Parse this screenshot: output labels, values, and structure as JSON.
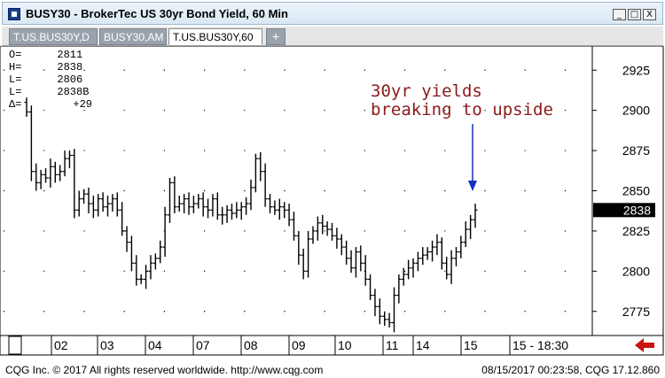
{
  "window": {
    "title": "BUSY30 - BrokerTec US 30yr Bond Yield, 60 Min",
    "buttons": [
      "_",
      "□",
      "X"
    ]
  },
  "tabs": [
    {
      "label": "T.US.BUS30Y,D",
      "active": false
    },
    {
      "label": "BUSY30,AM",
      "active": false
    },
    {
      "label": "T.US.BUS30Y,60",
      "active": true
    },
    {
      "label": "+",
      "active": false
    }
  ],
  "ohlc": [
    {
      "key": "O=",
      "value": "2811"
    },
    {
      "key": "H=",
      "value": "2838"
    },
    {
      "key": "L=",
      "value": "2806"
    },
    {
      "key": "L=",
      "value": "2838B"
    },
    {
      "key": "Δ=",
      "value": "+29"
    }
  ],
  "annotation": {
    "line1": "30yr yields",
    "line2": "breaking to upside"
  },
  "colors": {
    "bars": "#000000",
    "annotation": "#8b1a1a",
    "arrow": "#1030c0",
    "last_price_bg": "#000000",
    "nav_arrow": "#cc1111"
  },
  "chart_data": {
    "type": "ohlc",
    "ylim": [
      2760,
      2940
    ],
    "y_ticks": [
      2775,
      2800,
      2825,
      2850,
      2875,
      2900,
      2925
    ],
    "last_price": 2838,
    "last_price_label": "2838",
    "x_labels": [
      "02",
      "03",
      "04",
      "07",
      "08",
      "09",
      "10",
      "11",
      "14",
      "15",
      "15 - 18:30"
    ],
    "grid": "dotted",
    "closes": [
      2899,
      2862,
      2855,
      2860,
      2858,
      2865,
      2860,
      2862,
      2870,
      2872,
      2838,
      2845,
      2848,
      2842,
      2838,
      2845,
      2840,
      2842,
      2845,
      2838,
      2825,
      2818,
      2805,
      2795,
      2795,
      2800,
      2805,
      2808,
      2815,
      2835,
      2855,
      2840,
      2842,
      2845,
      2840,
      2842,
      2845,
      2840,
      2838,
      2845,
      2835,
      2835,
      2838,
      2836,
      2838,
      2840,
      2842,
      2852,
      2870,
      2862,
      2845,
      2840,
      2838,
      2840,
      2838,
      2832,
      2822,
      2810,
      2800,
      2820,
      2825,
      2830,
      2828,
      2826,
      2822,
      2820,
      2815,
      2808,
      2802,
      2812,
      2805,
      2795,
      2785,
      2778,
      2772,
      2770,
      2768,
      2785,
      2795,
      2798,
      2802,
      2805,
      2808,
      2810,
      2812,
      2815,
      2818,
      2805,
      2798,
      2808,
      2812,
      2818,
      2826,
      2832,
      2838
    ]
  },
  "footer": {
    "left": "CQG Inc. © 2017 All rights reserved worldwide. http://www.cqg.com",
    "right": "08/15/2017 00:23:58, CQG 17.12.860"
  }
}
